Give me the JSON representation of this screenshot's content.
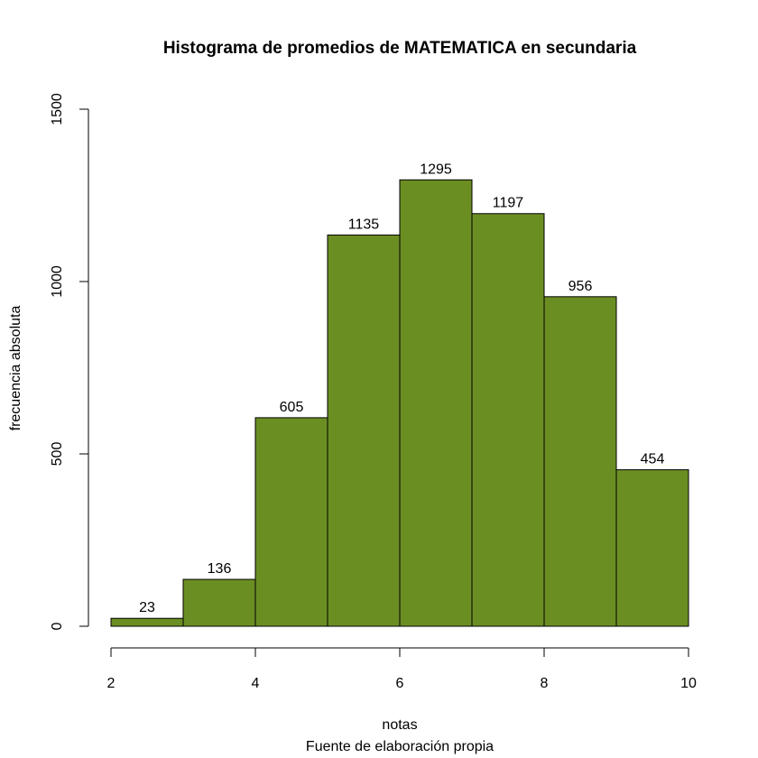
{
  "chart_data": {
    "type": "bar",
    "title": "Histograma de promedios de MATEMATICA en secundaria",
    "xlabel": "notas",
    "ylabel": "frecuencia absoluta",
    "caption": "Fuente de elaboración propia",
    "bins": [
      {
        "from": 2,
        "to": 3,
        "value": 23
      },
      {
        "from": 3,
        "to": 4,
        "value": 136
      },
      {
        "from": 4,
        "to": 5,
        "value": 605
      },
      {
        "from": 5,
        "to": 6,
        "value": 1135
      },
      {
        "from": 6,
        "to": 7,
        "value": 1295
      },
      {
        "from": 7,
        "to": 8,
        "value": 1197
      },
      {
        "from": 8,
        "to": 9,
        "value": 956
      },
      {
        "from": 9,
        "to": 10,
        "value": 454
      }
    ],
    "xlim": [
      2,
      10
    ],
    "ylim": [
      0,
      1500
    ],
    "x_ticks": [
      "2",
      "4",
      "6",
      "8",
      "10"
    ],
    "y_ticks": [
      "0",
      "500",
      "1000",
      "1500"
    ],
    "bar_color": "#6b8e23",
    "grid": false
  }
}
